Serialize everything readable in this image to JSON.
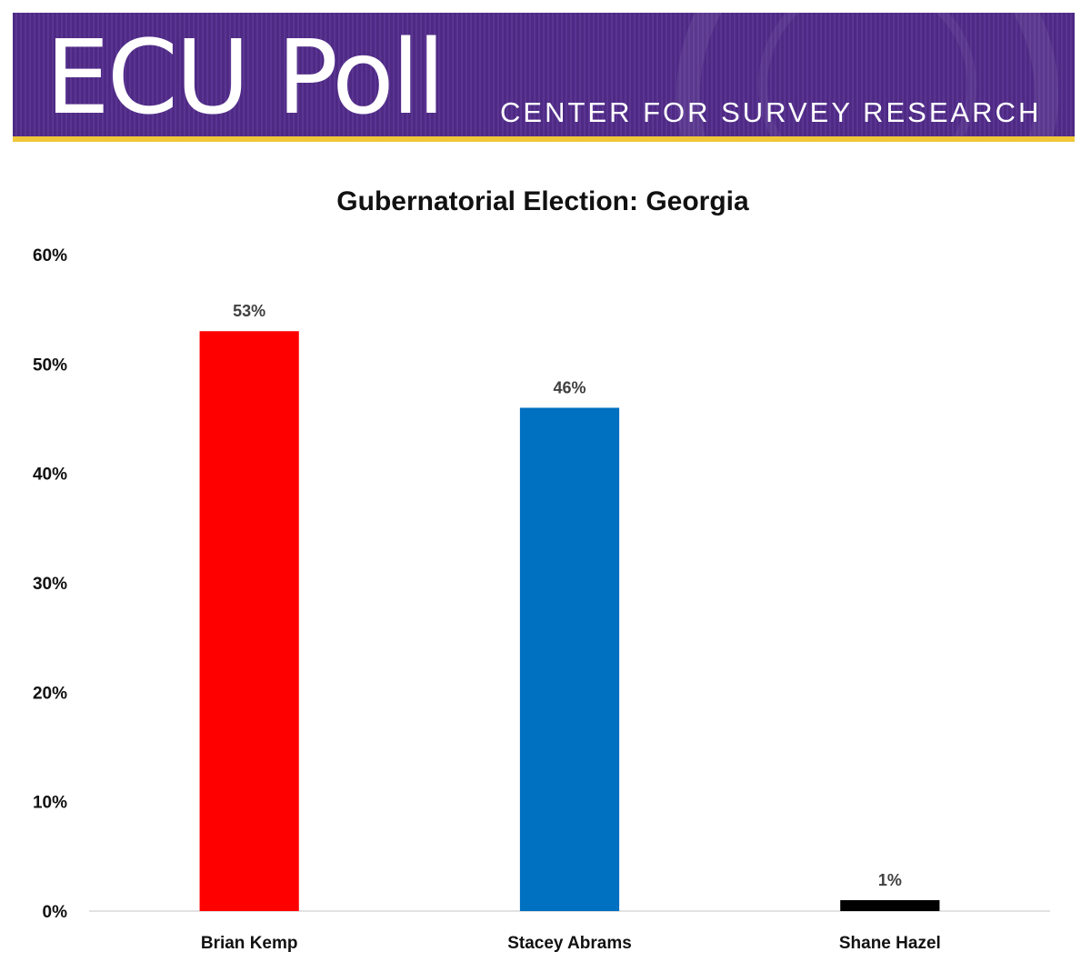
{
  "banner": {
    "logo": "ECU Poll",
    "subtitle": "CENTER FOR SURVEY RESEARCH",
    "colors": {
      "purple": "#4e2a84",
      "gold": "#f0c73a"
    }
  },
  "chart_data": {
    "type": "bar",
    "title": "Gubernatorial Election: Georgia",
    "categories": [
      "Brian Kemp",
      "Stacey Abrams",
      "Shane Hazel"
    ],
    "values": [
      53,
      46,
      1
    ],
    "value_labels": [
      "53%",
      "46%",
      "1%"
    ],
    "colors": [
      "#ff0000",
      "#0070c0",
      "#000000"
    ],
    "ylim": [
      0,
      60
    ],
    "yticks": [
      "0%",
      "10%",
      "20%",
      "30%",
      "40%",
      "50%",
      "60%"
    ],
    "grid": false,
    "xlabel": "",
    "ylabel": ""
  }
}
